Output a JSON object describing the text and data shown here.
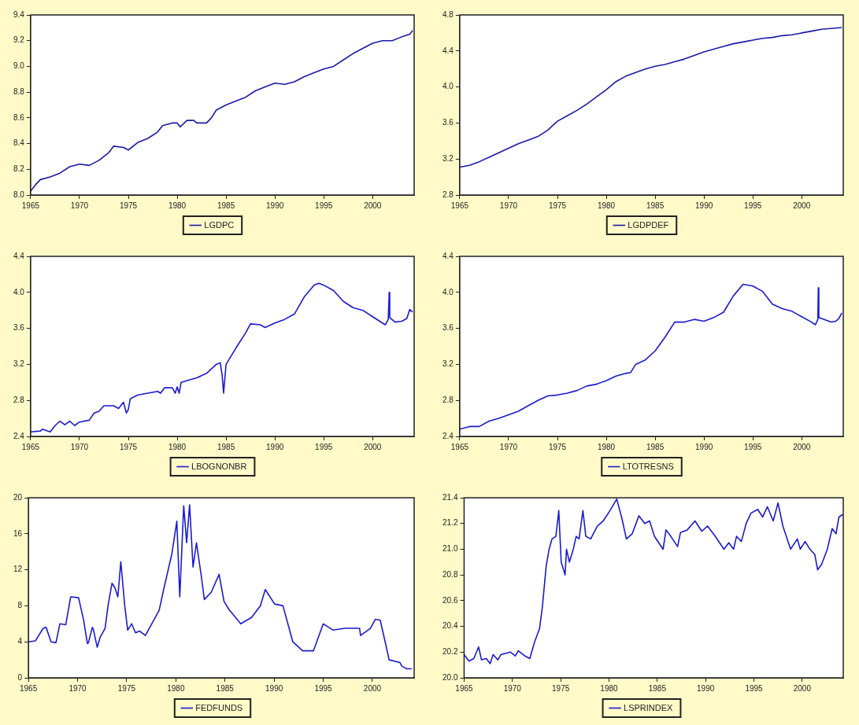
{
  "chart_data": [
    {
      "type": "line",
      "xlim": [
        1965,
        2004.25
      ],
      "xticks": [
        1965,
        1970,
        1975,
        1980,
        1985,
        1990,
        1995,
        2000
      ],
      "ylim": [
        8.0,
        9.4
      ],
      "yticks": [
        {
          "value": 8,
          "label": "8.0"
        },
        8.2,
        8.4,
        8.6,
        8.8,
        {
          "value": 9,
          "label": "9.0"
        },
        9.2,
        9.4
      ],
      "legend": "bottom",
      "grid": false,
      "marker": "none",
      "line_style": "solid",
      "series": [
        {
          "name": "LGDPC",
          "color": "#1a1aa8",
          "x": [
            1965,
            1965.5,
            1966,
            1967,
            1968,
            1969,
            1970,
            1971,
            1972,
            1973,
            1973.5,
            1974.5,
            1975,
            1976,
            1977,
            1978,
            1978.5,
            1979.5,
            1980,
            1980.3,
            1981,
            1981.7,
            1982,
            1983,
            1983.5,
            1984,
            1985,
            1986,
            1987,
            1988,
            1989,
            1990,
            1991,
            1992,
            1993,
            1994,
            1995,
            1996,
            1997,
            1998,
            1999,
            2000,
            2001,
            2002,
            2003,
            2003.8,
            2004.1
          ],
          "values": [
            8.03,
            8.08,
            8.12,
            8.14,
            8.17,
            8.22,
            8.24,
            8.23,
            8.27,
            8.33,
            8.38,
            8.37,
            8.35,
            8.41,
            8.44,
            8.49,
            8.54,
            8.56,
            8.56,
            8.53,
            8.58,
            8.58,
            8.56,
            8.56,
            8.6,
            8.66,
            8.7,
            8.73,
            8.76,
            8.81,
            8.84,
            8.87,
            8.86,
            8.88,
            8.92,
            8.95,
            8.98,
            9.0,
            9.05,
            9.1,
            9.14,
            9.18,
            9.2,
            9.2,
            9.23,
            9.25,
            9.28
          ]
        }
      ]
    },
    {
      "type": "line",
      "xlim": [
        1965,
        2004.25
      ],
      "xticks": [
        1965,
        1970,
        1975,
        1980,
        1985,
        1990,
        1995,
        2000
      ],
      "ylim": [
        2.8,
        4.8
      ],
      "yticks": [
        2.8,
        3.2,
        3.6,
        {
          "value": 4,
          "label": "4.0"
        },
        4.4,
        4.8
      ],
      "legend": "bottom",
      "grid": false,
      "marker": "none",
      "line_style": "solid",
      "series": [
        {
          "name": "LGDPDEF",
          "color": "#1a1aa8",
          "x": [
            1965,
            1966,
            1967,
            1968,
            1969,
            1970,
            1971,
            1972,
            1973,
            1974,
            1975,
            1976,
            1977,
            1978,
            1979,
            1980,
            1981,
            1982,
            1983,
            1984,
            1985,
            1986,
            1987,
            1988,
            1989,
            1990,
            1991,
            1992,
            1993,
            1994,
            1995,
            1996,
            1997,
            1998,
            1999,
            2000,
            2001,
            2002,
            2003,
            2004.1
          ],
          "values": [
            3.11,
            3.13,
            3.17,
            3.22,
            3.27,
            3.32,
            3.37,
            3.41,
            3.45,
            3.52,
            3.62,
            3.68,
            3.74,
            3.81,
            3.89,
            3.97,
            4.06,
            4.12,
            4.16,
            4.2,
            4.23,
            4.25,
            4.28,
            4.31,
            4.35,
            4.39,
            4.42,
            4.45,
            4.48,
            4.5,
            4.52,
            4.54,
            4.55,
            4.57,
            4.58,
            4.6,
            4.62,
            4.64,
            4.65,
            4.66
          ]
        }
      ]
    },
    {
      "type": "line",
      "xlim": [
        1965,
        2004.25
      ],
      "xticks": [
        1965,
        1970,
        1975,
        1980,
        1985,
        1990,
        1995,
        2000
      ],
      "ylim": [
        2.4,
        4.4
      ],
      "yticks": [
        2.4,
        2.8,
        3.2,
        3.6,
        {
          "value": 4,
          "label": "4.0"
        },
        4.4
      ],
      "legend": "bottom",
      "grid": false,
      "marker": "none",
      "line_style": "solid",
      "series": [
        {
          "name": "LBOGNONBR",
          "color": "#1a1ad0",
          "x": [
            1965,
            1966,
            1966.2,
            1967,
            1967.5,
            1968,
            1968.5,
            1969,
            1969.5,
            1970,
            1971,
            1971.5,
            1972,
            1972.5,
            1973.5,
            1974,
            1974.5,
            1974.8,
            1975,
            1975.2,
            1976,
            1977,
            1978,
            1978.3,
            1978.7,
            1979.5,
            1979.8,
            1980,
            1980.2,
            1980.4,
            1981,
            1982,
            1983,
            1984,
            1984.4,
            1984.6,
            1984.75,
            1985,
            1986,
            1987,
            1987.5,
            1988.5,
            1989,
            1990,
            1991,
            1992,
            1993,
            1994,
            1994.5,
            1995,
            1996,
            1997,
            1998,
            1999,
            2000,
            2001,
            2001.3,
            2001.6,
            2001.7,
            2001.75,
            2002.3,
            2003,
            2003.5,
            2003.8,
            2004.1
          ],
          "values": [
            2.45,
            2.46,
            2.48,
            2.45,
            2.52,
            2.57,
            2.53,
            2.57,
            2.52,
            2.56,
            2.58,
            2.66,
            2.68,
            2.74,
            2.74,
            2.71,
            2.78,
            2.66,
            2.7,
            2.82,
            2.86,
            2.88,
            2.9,
            2.88,
            2.94,
            2.94,
            2.88,
            2.95,
            2.88,
            3.0,
            3.02,
            3.05,
            3.1,
            3.2,
            3.22,
            3.08,
            2.88,
            3.2,
            3.38,
            3.55,
            3.65,
            3.64,
            3.61,
            3.66,
            3.7,
            3.76,
            3.95,
            4.08,
            4.1,
            4.08,
            4.02,
            3.9,
            3.83,
            3.8,
            3.73,
            3.66,
            3.64,
            3.7,
            4.0,
            3.72,
            3.67,
            3.68,
            3.71,
            3.81,
            3.78
          ]
        }
      ]
    },
    {
      "type": "line",
      "xlim": [
        1965,
        2004.25
      ],
      "xticks": [
        1965,
        1970,
        1975,
        1980,
        1985,
        1990,
        1995,
        2000
      ],
      "ylim": [
        2.4,
        4.4
      ],
      "yticks": [
        2.4,
        2.8,
        3.2,
        3.6,
        {
          "value": 4,
          "label": "4.0"
        },
        4.4
      ],
      "legend": "bottom",
      "grid": false,
      "marker": "none",
      "line_style": "solid",
      "series": [
        {
          "name": "LTOTRESNS",
          "color": "#1a1ad0",
          "x": [
            1965,
            1966,
            1967,
            1968,
            1969,
            1970,
            1971,
            1972,
            1973,
            1974,
            1975,
            1976,
            1977,
            1978,
            1979,
            1980,
            1981,
            1982,
            1982.5,
            1983,
            1984,
            1985,
            1986,
            1987,
            1988,
            1989,
            1990,
            1991,
            1992,
            1993,
            1994,
            1995,
            1996,
            1997,
            1998,
            1999,
            2000,
            2001,
            2001.4,
            2001.65,
            2001.7,
            2001.75,
            2003,
            2003.5,
            2003.8,
            2004.1
          ],
          "values": [
            2.48,
            2.51,
            2.51,
            2.57,
            2.6,
            2.64,
            2.68,
            2.74,
            2.8,
            2.85,
            2.86,
            2.88,
            2.91,
            2.96,
            2.98,
            3.02,
            3.07,
            3.1,
            3.11,
            3.2,
            3.25,
            3.35,
            3.5,
            3.67,
            3.67,
            3.7,
            3.68,
            3.72,
            3.78,
            3.96,
            4.09,
            4.07,
            4.01,
            3.87,
            3.82,
            3.79,
            3.73,
            3.67,
            3.64,
            3.7,
            4.05,
            3.72,
            3.67,
            3.68,
            3.71,
            3.77
          ]
        }
      ]
    },
    {
      "type": "line",
      "xlim": [
        1965,
        2004.25
      ],
      "xticks": [
        1965,
        1970,
        1975,
        1980,
        1985,
        1990,
        1995,
        2000
      ],
      "ylim": [
        0,
        20
      ],
      "yticks": [
        0,
        4,
        8,
        12,
        16,
        20
      ],
      "legend": "bottom",
      "grid": false,
      "marker": "none",
      "line_style": "solid",
      "series": [
        {
          "name": "FEDFUNDS",
          "color": "#1a1ad0",
          "x": [
            1965,
            1965.7,
            1966.5,
            1966.8,
            1967.3,
            1967.8,
            1968.2,
            1968.8,
            1969.3,
            1970.1,
            1970.6,
            1971,
            1971.1,
            1971.5,
            1971.6,
            1972,
            1972.3,
            1972.8,
            1973.1,
            1973.5,
            1973.8,
            1974.1,
            1974.4,
            1974.8,
            1975.1,
            1975.5,
            1975.9,
            1976.3,
            1976.9,
            1977.8,
            1978.3,
            1978.8,
            1979.6,
            1980.1,
            1980.4,
            1980.8,
            1981.1,
            1981.4,
            1981.75,
            1982.1,
            1982.6,
            1982.9,
            1983.6,
            1984.4,
            1984.9,
            1985.4,
            1986.6,
            1987.7,
            1988.6,
            1989.1,
            1990.05,
            1990.9,
            1991.4,
            1991.9,
            1992.9,
            1994,
            1995,
            1996,
            1997.2,
            1998.7,
            1998.8,
            1999.8,
            2000.3,
            2000.8,
            2001.3,
            2001.7,
            2002.8,
            2003,
            2003.5,
            2004
          ],
          "values": [
            4,
            4.1,
            5.5,
            5.6,
            4,
            3.9,
            6,
            5.9,
            9,
            8.9,
            6.5,
            3.8,
            3.9,
            5.6,
            5.4,
            3.4,
            4.5,
            5.5,
            8,
            10.5,
            10,
            9,
            12.9,
            8,
            5.3,
            6,
            5,
            5.2,
            4.7,
            6.5,
            7.5,
            10,
            13.8,
            17.4,
            9,
            19.1,
            15,
            19.2,
            12.3,
            15,
            11.2,
            8.7,
            9.5,
            11.5,
            8.5,
            7.6,
            6,
            6.7,
            8,
            9.8,
            8.2,
            8,
            6,
            4,
            3,
            3,
            6,
            5.3,
            5.5,
            5.5,
            4.7,
            5.5,
            6.5,
            6.4,
            4,
            2,
            1.7,
            1.3,
            1,
            1
          ]
        }
      ]
    },
    {
      "type": "line",
      "xlim": [
        1965,
        2004.25
      ],
      "xticks": [
        1965,
        1970,
        1975,
        1980,
        1985,
        1990,
        1995,
        2000
      ],
      "ylim": [
        20.0,
        21.4
      ],
      "yticks": [
        {
          "value": 20,
          "label": "20.0"
        },
        20.2,
        20.4,
        20.6,
        20.8,
        {
          "value": 21,
          "label": "21.0"
        },
        21.2,
        21.4
      ],
      "legend": "bottom",
      "grid": false,
      "marker": "none",
      "line_style": "solid",
      "series": [
        {
          "name": "LSPRINDEX",
          "color": "#1a1ad0",
          "x": [
            1965,
            1965.5,
            1966,
            1966.5,
            1966.8,
            1967.3,
            1967.7,
            1968,
            1968.5,
            1968.8,
            1969.8,
            1970.3,
            1970.6,
            1971.3,
            1971.8,
            1972.3,
            1972.8,
            1973.1,
            1973.5,
            1973.8,
            1974.1,
            1974.5,
            1974.8,
            1975.05,
            1975.45,
            1975.6,
            1975.9,
            1976.3,
            1976.6,
            1976.9,
            1977.3,
            1977.6,
            1978.1,
            1978.8,
            1979.4,
            1980.1,
            1980.8,
            1981.3,
            1981.8,
            1982.4,
            1983.1,
            1983.7,
            1984.2,
            1984.7,
            1985.6,
            1985.9,
            1986.4,
            1987.1,
            1987.4,
            1988.1,
            1988.9,
            1989.6,
            1990.2,
            1991,
            1991.9,
            1992.4,
            1992.9,
            1993.2,
            1993.7,
            1994.2,
            1994.7,
            1995.4,
            1995.9,
            1996.4,
            1997,
            1997.5,
            1998,
            1998.8,
            1999.5,
            1999.8,
            2000.3,
            2000.8,
            2001.3,
            2001.6,
            2002,
            2002.6,
            2003.1,
            2003.5,
            2003.8,
            2004.2
          ],
          "values": [
            20.18,
            20.13,
            20.15,
            20.24,
            20.14,
            20.15,
            20.11,
            20.18,
            20.14,
            20.18,
            20.2,
            20.17,
            20.21,
            20.17,
            20.15,
            20.28,
            20.38,
            20.55,
            20.87,
            21.0,
            21.08,
            21.1,
            21.3,
            20.9,
            20.8,
            21.0,
            20.9,
            21.0,
            21.1,
            21.08,
            21.3,
            21.1,
            21.08,
            21.18,
            21.22,
            21.3,
            21.39,
            21.25,
            21.08,
            21.12,
            21.26,
            21.2,
            21.22,
            21.1,
            21.0,
            21.15,
            21.1,
            21.02,
            21.13,
            21.15,
            21.22,
            21.14,
            21.18,
            21.1,
            21.0,
            21.05,
            21.0,
            21.1,
            21.06,
            21.2,
            21.28,
            21.31,
            21.25,
            21.33,
            21.22,
            21.36,
            21.18,
            21.0,
            21.08,
            21.0,
            21.06,
            21.0,
            20.96,
            20.84,
            20.88,
            21.0,
            21.16,
            21.12,
            21.25,
            21.27
          ]
        }
      ]
    }
  ]
}
